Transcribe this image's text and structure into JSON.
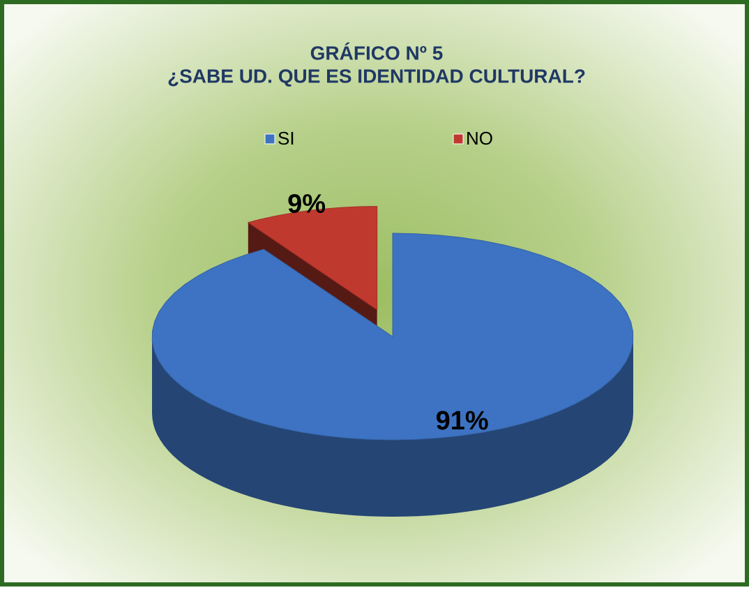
{
  "chart_data": {
    "type": "pie",
    "title": [
      "GRÁFICO Nº 5",
      "¿SABE UD. QUE ES IDENTIDAD CULTURAL?"
    ],
    "categories": [
      "SI",
      "NO"
    ],
    "values": [
      91,
      9
    ],
    "value_labels": [
      "91%",
      "9%"
    ],
    "colors": [
      "#3d73c2",
      "#c0392f"
    ],
    "legend": "top"
  }
}
